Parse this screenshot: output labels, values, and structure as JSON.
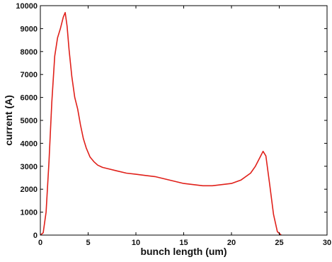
{
  "chart_data": {
    "type": "line",
    "title": "",
    "xlabel": "bunch length (um)",
    "ylabel": "current (A)",
    "xlim": [
      0,
      30
    ],
    "ylim": [
      0,
      10000
    ],
    "xticks": [
      0,
      5,
      10,
      15,
      20,
      25,
      30
    ],
    "yticks": [
      0,
      1000,
      2000,
      3000,
      4000,
      5000,
      6000,
      7000,
      8000,
      9000,
      10000
    ],
    "grid": false,
    "legend": "none",
    "colors": {
      "line": "#e0201a",
      "axis": "#000000"
    },
    "series": [
      {
        "x": [
          0.0,
          0.3,
          0.6,
          0.9,
          1.2,
          1.5,
          1.8,
          2.1,
          2.4,
          2.6,
          2.8,
          3.0,
          3.3,
          3.6,
          3.9,
          4.2,
          4.5,
          4.8,
          5.2,
          5.6,
          6.0,
          6.5,
          7.0,
          8.0,
          9.0,
          10.0,
          11.0,
          12.0,
          13.0,
          14.0,
          15.0,
          16.0,
          17.0,
          18.0,
          19.0,
          20.0,
          21.0,
          22.0,
          22.5,
          23.0,
          23.3,
          23.6,
          24.0,
          24.4,
          24.8,
          25.2
        ],
        "y": [
          0,
          100,
          1000,
          3200,
          5800,
          7800,
          8600,
          9000,
          9500,
          9700,
          9100,
          8100,
          6900,
          6000,
          5500,
          4800,
          4200,
          3800,
          3400,
          3200,
          3050,
          2950,
          2900,
          2800,
          2700,
          2650,
          2600,
          2550,
          2450,
          2350,
          2250,
          2200,
          2150,
          2150,
          2200,
          2250,
          2400,
          2700,
          3000,
          3400,
          3650,
          3450,
          2200,
          900,
          150,
          0
        ]
      }
    ]
  }
}
